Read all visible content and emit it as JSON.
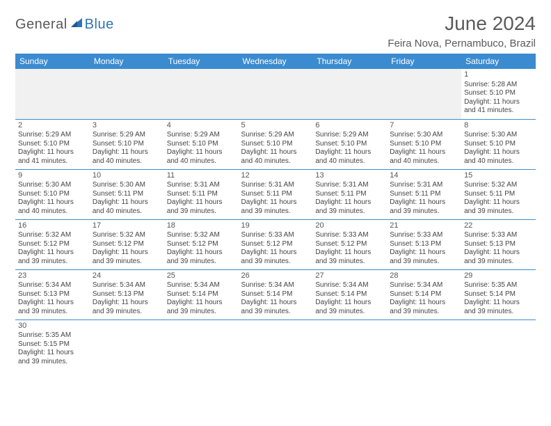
{
  "brand": {
    "part1": "General",
    "part2": "Blue"
  },
  "title": "June 2024",
  "location": "Feira Nova, Pernambuco, Brazil",
  "colors": {
    "header_bg": "#3b8bd0",
    "header_text": "#ffffff",
    "cell_border": "#3b8bd0",
    "brand_gray": "#5a5a5a",
    "brand_blue": "#2e74b5",
    "body_text": "#444444",
    "empty_bg": "#f1f1f1"
  },
  "weekdays": [
    "Sunday",
    "Monday",
    "Tuesday",
    "Wednesday",
    "Thursday",
    "Friday",
    "Saturday"
  ],
  "weeks": [
    [
      null,
      null,
      null,
      null,
      null,
      null,
      {
        "n": "1",
        "sr": "Sunrise: 5:28 AM",
        "ss": "Sunset: 5:10 PM",
        "dl": "Daylight: 11 hours and 41 minutes."
      }
    ],
    [
      {
        "n": "2",
        "sr": "Sunrise: 5:29 AM",
        "ss": "Sunset: 5:10 PM",
        "dl": "Daylight: 11 hours and 41 minutes."
      },
      {
        "n": "3",
        "sr": "Sunrise: 5:29 AM",
        "ss": "Sunset: 5:10 PM",
        "dl": "Daylight: 11 hours and 40 minutes."
      },
      {
        "n": "4",
        "sr": "Sunrise: 5:29 AM",
        "ss": "Sunset: 5:10 PM",
        "dl": "Daylight: 11 hours and 40 minutes."
      },
      {
        "n": "5",
        "sr": "Sunrise: 5:29 AM",
        "ss": "Sunset: 5:10 PM",
        "dl": "Daylight: 11 hours and 40 minutes."
      },
      {
        "n": "6",
        "sr": "Sunrise: 5:29 AM",
        "ss": "Sunset: 5:10 PM",
        "dl": "Daylight: 11 hours and 40 minutes."
      },
      {
        "n": "7",
        "sr": "Sunrise: 5:30 AM",
        "ss": "Sunset: 5:10 PM",
        "dl": "Daylight: 11 hours and 40 minutes."
      },
      {
        "n": "8",
        "sr": "Sunrise: 5:30 AM",
        "ss": "Sunset: 5:10 PM",
        "dl": "Daylight: 11 hours and 40 minutes."
      }
    ],
    [
      {
        "n": "9",
        "sr": "Sunrise: 5:30 AM",
        "ss": "Sunset: 5:10 PM",
        "dl": "Daylight: 11 hours and 40 minutes."
      },
      {
        "n": "10",
        "sr": "Sunrise: 5:30 AM",
        "ss": "Sunset: 5:11 PM",
        "dl": "Daylight: 11 hours and 40 minutes."
      },
      {
        "n": "11",
        "sr": "Sunrise: 5:31 AM",
        "ss": "Sunset: 5:11 PM",
        "dl": "Daylight: 11 hours and 39 minutes."
      },
      {
        "n": "12",
        "sr": "Sunrise: 5:31 AM",
        "ss": "Sunset: 5:11 PM",
        "dl": "Daylight: 11 hours and 39 minutes."
      },
      {
        "n": "13",
        "sr": "Sunrise: 5:31 AM",
        "ss": "Sunset: 5:11 PM",
        "dl": "Daylight: 11 hours and 39 minutes."
      },
      {
        "n": "14",
        "sr": "Sunrise: 5:31 AM",
        "ss": "Sunset: 5:11 PM",
        "dl": "Daylight: 11 hours and 39 minutes."
      },
      {
        "n": "15",
        "sr": "Sunrise: 5:32 AM",
        "ss": "Sunset: 5:11 PM",
        "dl": "Daylight: 11 hours and 39 minutes."
      }
    ],
    [
      {
        "n": "16",
        "sr": "Sunrise: 5:32 AM",
        "ss": "Sunset: 5:12 PM",
        "dl": "Daylight: 11 hours and 39 minutes."
      },
      {
        "n": "17",
        "sr": "Sunrise: 5:32 AM",
        "ss": "Sunset: 5:12 PM",
        "dl": "Daylight: 11 hours and 39 minutes."
      },
      {
        "n": "18",
        "sr": "Sunrise: 5:32 AM",
        "ss": "Sunset: 5:12 PM",
        "dl": "Daylight: 11 hours and 39 minutes."
      },
      {
        "n": "19",
        "sr": "Sunrise: 5:33 AM",
        "ss": "Sunset: 5:12 PM",
        "dl": "Daylight: 11 hours and 39 minutes."
      },
      {
        "n": "20",
        "sr": "Sunrise: 5:33 AM",
        "ss": "Sunset: 5:12 PM",
        "dl": "Daylight: 11 hours and 39 minutes."
      },
      {
        "n": "21",
        "sr": "Sunrise: 5:33 AM",
        "ss": "Sunset: 5:13 PM",
        "dl": "Daylight: 11 hours and 39 minutes."
      },
      {
        "n": "22",
        "sr": "Sunrise: 5:33 AM",
        "ss": "Sunset: 5:13 PM",
        "dl": "Daylight: 11 hours and 39 minutes."
      }
    ],
    [
      {
        "n": "23",
        "sr": "Sunrise: 5:34 AM",
        "ss": "Sunset: 5:13 PM",
        "dl": "Daylight: 11 hours and 39 minutes."
      },
      {
        "n": "24",
        "sr": "Sunrise: 5:34 AM",
        "ss": "Sunset: 5:13 PM",
        "dl": "Daylight: 11 hours and 39 minutes."
      },
      {
        "n": "25",
        "sr": "Sunrise: 5:34 AM",
        "ss": "Sunset: 5:14 PM",
        "dl": "Daylight: 11 hours and 39 minutes."
      },
      {
        "n": "26",
        "sr": "Sunrise: 5:34 AM",
        "ss": "Sunset: 5:14 PM",
        "dl": "Daylight: 11 hours and 39 minutes."
      },
      {
        "n": "27",
        "sr": "Sunrise: 5:34 AM",
        "ss": "Sunset: 5:14 PM",
        "dl": "Daylight: 11 hours and 39 minutes."
      },
      {
        "n": "28",
        "sr": "Sunrise: 5:34 AM",
        "ss": "Sunset: 5:14 PM",
        "dl": "Daylight: 11 hours and 39 minutes."
      },
      {
        "n": "29",
        "sr": "Sunrise: 5:35 AM",
        "ss": "Sunset: 5:14 PM",
        "dl": "Daylight: 11 hours and 39 minutes."
      }
    ],
    [
      {
        "n": "30",
        "sr": "Sunrise: 5:35 AM",
        "ss": "Sunset: 5:15 PM",
        "dl": "Daylight: 11 hours and 39 minutes."
      },
      null,
      null,
      null,
      null,
      null,
      null
    ]
  ]
}
